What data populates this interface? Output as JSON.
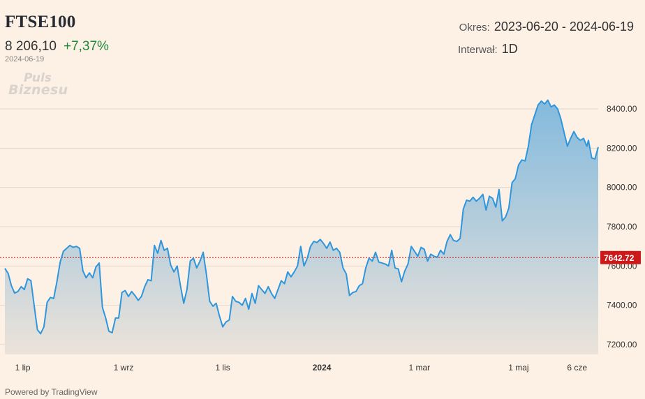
{
  "header": {
    "title": "FTSE100",
    "price": "8 206,10",
    "change": "+7,37%",
    "date": "2024-06-19",
    "logo_line1": "Puls",
    "logo_line2": "Biznesu",
    "range_label": "Okres:",
    "range_value": "2023-06-20 - 2024-06-19",
    "interval_label": "Interwał:",
    "interval_value": "1D"
  },
  "footer": {
    "powered": "Powered by TradingView"
  },
  "colors": {
    "line": "#2e96dc",
    "fill_top": "#7db7dd",
    "fill_bottom": "#ece3da",
    "reference": "#cc1a1a",
    "gain": "#1e8a3a",
    "background": "#fdf1e6"
  },
  "chart_data": {
    "type": "area",
    "ylim": [
      7150,
      8500
    ],
    "yticks": [
      7200,
      7400,
      7600,
      7800,
      8000,
      8200,
      8400
    ],
    "ytick_labels": [
      "7200.00",
      "7400.00",
      "7600.00",
      "7800.00",
      "8000.00",
      "8200.00",
      "8400.00"
    ],
    "xticks": [
      {
        "x": "2023-07-01",
        "label": "1 lip",
        "bold": false
      },
      {
        "x": "2023-09-01",
        "label": "1 wrz",
        "bold": false
      },
      {
        "x": "2023-11-01",
        "label": "1 lis",
        "bold": false
      },
      {
        "x": "2024-01-01",
        "label": "2024",
        "bold": true
      },
      {
        "x": "2024-03-01",
        "label": "1 mar",
        "bold": false
      },
      {
        "x": "2024-05-01",
        "label": "1 maj",
        "bold": false
      },
      {
        "x": "2024-06-06",
        "label": "6 cze",
        "bold": false
      }
    ],
    "x_range": [
      "2023-06-20",
      "2024-06-19"
    ],
    "reference_value": 7642.72,
    "reference_label": "7642.72",
    "grid": true,
    "series": [
      {
        "points": [
          [
            "2023-06-20",
            7588
          ],
          [
            "2023-06-22",
            7562
          ],
          [
            "2023-06-24",
            7500
          ],
          [
            "2023-06-26",
            7462
          ],
          [
            "2023-06-28",
            7470
          ],
          [
            "2023-06-30",
            7495
          ],
          [
            "2023-07-02",
            7480
          ],
          [
            "2023-07-04",
            7535
          ],
          [
            "2023-07-06",
            7525
          ],
          [
            "2023-07-08",
            7400
          ],
          [
            "2023-07-10",
            7275
          ],
          [
            "2023-07-12",
            7255
          ],
          [
            "2023-07-14",
            7290
          ],
          [
            "2023-07-16",
            7415
          ],
          [
            "2023-07-18",
            7440
          ],
          [
            "2023-07-20",
            7435
          ],
          [
            "2023-07-22",
            7520
          ],
          [
            "2023-07-24",
            7620
          ],
          [
            "2023-07-26",
            7675
          ],
          [
            "2023-07-28",
            7690
          ],
          [
            "2023-07-30",
            7705
          ],
          [
            "2023-08-01",
            7695
          ],
          [
            "2023-08-03",
            7700
          ],
          [
            "2023-08-05",
            7690
          ],
          [
            "2023-08-07",
            7575
          ],
          [
            "2023-08-09",
            7540
          ],
          [
            "2023-08-11",
            7565
          ],
          [
            "2023-08-13",
            7540
          ],
          [
            "2023-08-15",
            7595
          ],
          [
            "2023-08-17",
            7615
          ],
          [
            "2023-08-19",
            7390
          ],
          [
            "2023-08-21",
            7335
          ],
          [
            "2023-08-23",
            7268
          ],
          [
            "2023-08-25",
            7260
          ],
          [
            "2023-08-27",
            7335
          ],
          [
            "2023-08-29",
            7335
          ],
          [
            "2023-08-31",
            7465
          ],
          [
            "2023-09-02",
            7475
          ],
          [
            "2023-09-04",
            7445
          ],
          [
            "2023-09-06",
            7470
          ],
          [
            "2023-09-08",
            7450
          ],
          [
            "2023-09-10",
            7425
          ],
          [
            "2023-09-12",
            7445
          ],
          [
            "2023-09-14",
            7495
          ],
          [
            "2023-09-16",
            7530
          ],
          [
            "2023-09-18",
            7525
          ],
          [
            "2023-09-20",
            7705
          ],
          [
            "2023-09-22",
            7665
          ],
          [
            "2023-09-24",
            7730
          ],
          [
            "2023-09-26",
            7680
          ],
          [
            "2023-09-28",
            7690
          ],
          [
            "2023-09-30",
            7605
          ],
          [
            "2023-10-02",
            7570
          ],
          [
            "2023-10-04",
            7600
          ],
          [
            "2023-10-06",
            7500
          ],
          [
            "2023-10-08",
            7410
          ],
          [
            "2023-10-10",
            7480
          ],
          [
            "2023-10-12",
            7625
          ],
          [
            "2023-10-14",
            7640
          ],
          [
            "2023-10-16",
            7590
          ],
          [
            "2023-10-18",
            7625
          ],
          [
            "2023-10-20",
            7670
          ],
          [
            "2023-10-22",
            7555
          ],
          [
            "2023-10-24",
            7420
          ],
          [
            "2023-10-26",
            7395
          ],
          [
            "2023-10-28",
            7410
          ],
          [
            "2023-10-30",
            7345
          ],
          [
            "2023-11-01",
            7290
          ],
          [
            "2023-11-03",
            7315
          ],
          [
            "2023-11-05",
            7325
          ],
          [
            "2023-11-07",
            7445
          ],
          [
            "2023-11-09",
            7420
          ],
          [
            "2023-11-11",
            7415
          ],
          [
            "2023-11-13",
            7400
          ],
          [
            "2023-11-15",
            7435
          ],
          [
            "2023-11-17",
            7380
          ],
          [
            "2023-11-19",
            7460
          ],
          [
            "2023-11-21",
            7410
          ],
          [
            "2023-11-23",
            7500
          ],
          [
            "2023-11-25",
            7480
          ],
          [
            "2023-11-27",
            7460
          ],
          [
            "2023-11-29",
            7495
          ],
          [
            "2023-12-01",
            7460
          ],
          [
            "2023-12-03",
            7435
          ],
          [
            "2023-12-05",
            7480
          ],
          [
            "2023-12-07",
            7525
          ],
          [
            "2023-12-09",
            7510
          ],
          [
            "2023-12-11",
            7570
          ],
          [
            "2023-12-13",
            7545
          ],
          [
            "2023-12-15",
            7570
          ],
          [
            "2023-12-17",
            7600
          ],
          [
            "2023-12-19",
            7700
          ],
          [
            "2023-12-21",
            7600
          ],
          [
            "2023-12-23",
            7640
          ],
          [
            "2023-12-25",
            7700
          ],
          [
            "2023-12-27",
            7725
          ],
          [
            "2023-12-29",
            7720
          ],
          [
            "2023-12-31",
            7735
          ],
          [
            "2024-01-02",
            7715
          ],
          [
            "2024-01-04",
            7690
          ],
          [
            "2024-01-06",
            7722
          ],
          [
            "2024-01-08",
            7680
          ],
          [
            "2024-01-10",
            7690
          ],
          [
            "2024-01-12",
            7670
          ],
          [
            "2024-01-14",
            7590
          ],
          [
            "2024-01-16",
            7560
          ],
          [
            "2024-01-18",
            7450
          ],
          [
            "2024-01-20",
            7465
          ],
          [
            "2024-01-22",
            7470
          ],
          [
            "2024-01-24",
            7500
          ],
          [
            "2024-01-26",
            7510
          ],
          [
            "2024-01-28",
            7590
          ],
          [
            "2024-01-30",
            7640
          ],
          [
            "2024-02-01",
            7625
          ],
          [
            "2024-02-03",
            7670
          ],
          [
            "2024-02-05",
            7620
          ],
          [
            "2024-02-07",
            7615
          ],
          [
            "2024-02-09",
            7610
          ],
          [
            "2024-02-11",
            7600
          ],
          [
            "2024-02-13",
            7680
          ],
          [
            "2024-02-15",
            7590
          ],
          [
            "2024-02-17",
            7585
          ],
          [
            "2024-02-19",
            7520
          ],
          [
            "2024-02-21",
            7575
          ],
          [
            "2024-02-23",
            7610
          ],
          [
            "2024-02-25",
            7700
          ],
          [
            "2024-02-27",
            7675
          ],
          [
            "2024-02-29",
            7650
          ],
          [
            "2024-03-02",
            7695
          ],
          [
            "2024-03-04",
            7685
          ],
          [
            "2024-03-06",
            7625
          ],
          [
            "2024-03-08",
            7660
          ],
          [
            "2024-03-10",
            7650
          ],
          [
            "2024-03-12",
            7645
          ],
          [
            "2024-03-14",
            7680
          ],
          [
            "2024-03-16",
            7660
          ],
          [
            "2024-03-18",
            7725
          ],
          [
            "2024-03-20",
            7760
          ],
          [
            "2024-03-22",
            7730
          ],
          [
            "2024-03-24",
            7725
          ],
          [
            "2024-03-26",
            7740
          ],
          [
            "2024-03-28",
            7890
          ],
          [
            "2024-03-30",
            7935
          ],
          [
            "2024-04-01",
            7930
          ],
          [
            "2024-04-03",
            7950
          ],
          [
            "2024-04-05",
            7930
          ],
          [
            "2024-04-07",
            7945
          ],
          [
            "2024-04-09",
            7965
          ],
          [
            "2024-04-11",
            7885
          ],
          [
            "2024-04-13",
            7955
          ],
          [
            "2024-04-15",
            7945
          ],
          [
            "2024-04-17",
            7900
          ],
          [
            "2024-04-19",
            7990
          ],
          [
            "2024-04-21",
            7830
          ],
          [
            "2024-04-23",
            7850
          ],
          [
            "2024-04-25",
            7895
          ],
          [
            "2024-04-27",
            8025
          ],
          [
            "2024-04-29",
            8045
          ],
          [
            "2024-05-01",
            8115
          ],
          [
            "2024-05-03",
            8140
          ],
          [
            "2024-05-05",
            8135
          ],
          [
            "2024-05-07",
            8210
          ],
          [
            "2024-05-09",
            8320
          ],
          [
            "2024-05-11",
            8370
          ],
          [
            "2024-05-13",
            8420
          ],
          [
            "2024-05-15",
            8440
          ],
          [
            "2024-05-17",
            8425
          ],
          [
            "2024-05-19",
            8445
          ],
          [
            "2024-05-21",
            8410
          ],
          [
            "2024-05-23",
            8420
          ],
          [
            "2024-05-25",
            8400
          ],
          [
            "2024-05-27",
            8350
          ],
          [
            "2024-05-29",
            8280
          ],
          [
            "2024-05-31",
            8210
          ],
          [
            "2024-06-02",
            8250
          ],
          [
            "2024-06-04",
            8285
          ],
          [
            "2024-06-06",
            8255
          ],
          [
            "2024-06-08",
            8240
          ],
          [
            "2024-06-10",
            8250
          ],
          [
            "2024-06-12",
            8210
          ],
          [
            "2024-06-13",
            8240
          ],
          [
            "2024-06-15",
            8150
          ],
          [
            "2024-06-17",
            8145
          ],
          [
            "2024-06-19",
            8206
          ]
        ]
      }
    ]
  }
}
